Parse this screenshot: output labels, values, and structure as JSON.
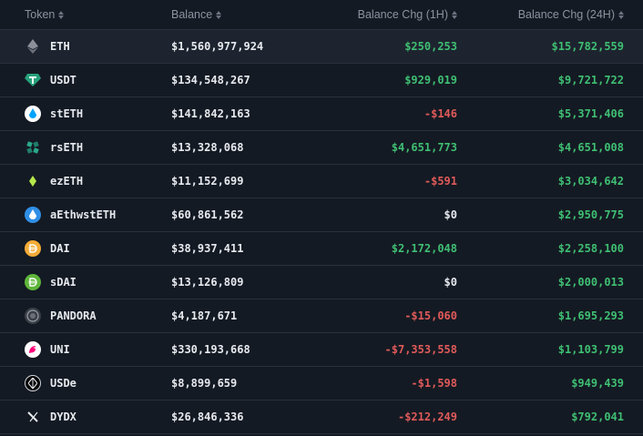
{
  "header": {
    "token": "Token",
    "balance": "Balance",
    "chg1h": "Balance Chg (1H)",
    "chg24h": "Balance Chg (24H)"
  },
  "rows": [
    {
      "token": "ETH",
      "balance": "$1,560,977,924",
      "chg1h": "$250,253",
      "chg24h": "$15,782,559",
      "icon": "eth-icon"
    },
    {
      "token": "USDT",
      "balance": "$134,548,267",
      "chg1h": "$929,019",
      "chg24h": "$9,721,722",
      "icon": "usdt-icon"
    },
    {
      "token": "stETH",
      "balance": "$141,842,163",
      "chg1h": "-$146",
      "chg24h": "$5,371,406",
      "icon": "steth-icon"
    },
    {
      "token": "rsETH",
      "balance": "$13,328,068",
      "chg1h": "$4,651,773",
      "chg24h": "$4,651,008",
      "icon": "rseth-icon"
    },
    {
      "token": "ezETH",
      "balance": "$11,152,699",
      "chg1h": "-$591",
      "chg24h": "$3,034,642",
      "icon": "ezeth-icon"
    },
    {
      "token": "aEthwstETH",
      "balance": "$60,861,562",
      "chg1h": "$0",
      "chg24h": "$2,950,775",
      "icon": "aethwsteth-icon"
    },
    {
      "token": "DAI",
      "balance": "$38,937,411",
      "chg1h": "$2,172,048",
      "chg24h": "$2,258,100",
      "icon": "dai-icon"
    },
    {
      "token": "sDAI",
      "balance": "$13,126,809",
      "chg1h": "$0",
      "chg24h": "$2,000,013",
      "icon": "sdai-icon"
    },
    {
      "token": "PANDORA",
      "balance": "$4,187,671",
      "chg1h": "-$15,060",
      "chg24h": "$1,695,293",
      "icon": "pandora-icon"
    },
    {
      "token": "UNI",
      "balance": "$330,193,668",
      "chg1h": "-$7,353,558",
      "chg24h": "$1,103,799",
      "icon": "uni-icon"
    },
    {
      "token": "USDe",
      "balance": "$8,899,659",
      "chg1h": "-$1,598",
      "chg24h": "$949,439",
      "icon": "usde-icon"
    },
    {
      "token": "DYDX",
      "balance": "$26,846,336",
      "chg1h": "-$212,249",
      "chg24h": "$792,041",
      "icon": "dydx-icon"
    }
  ],
  "colors": {
    "positive": "#3fbf73",
    "negative": "#e05a5a",
    "background": "#141a23"
  }
}
